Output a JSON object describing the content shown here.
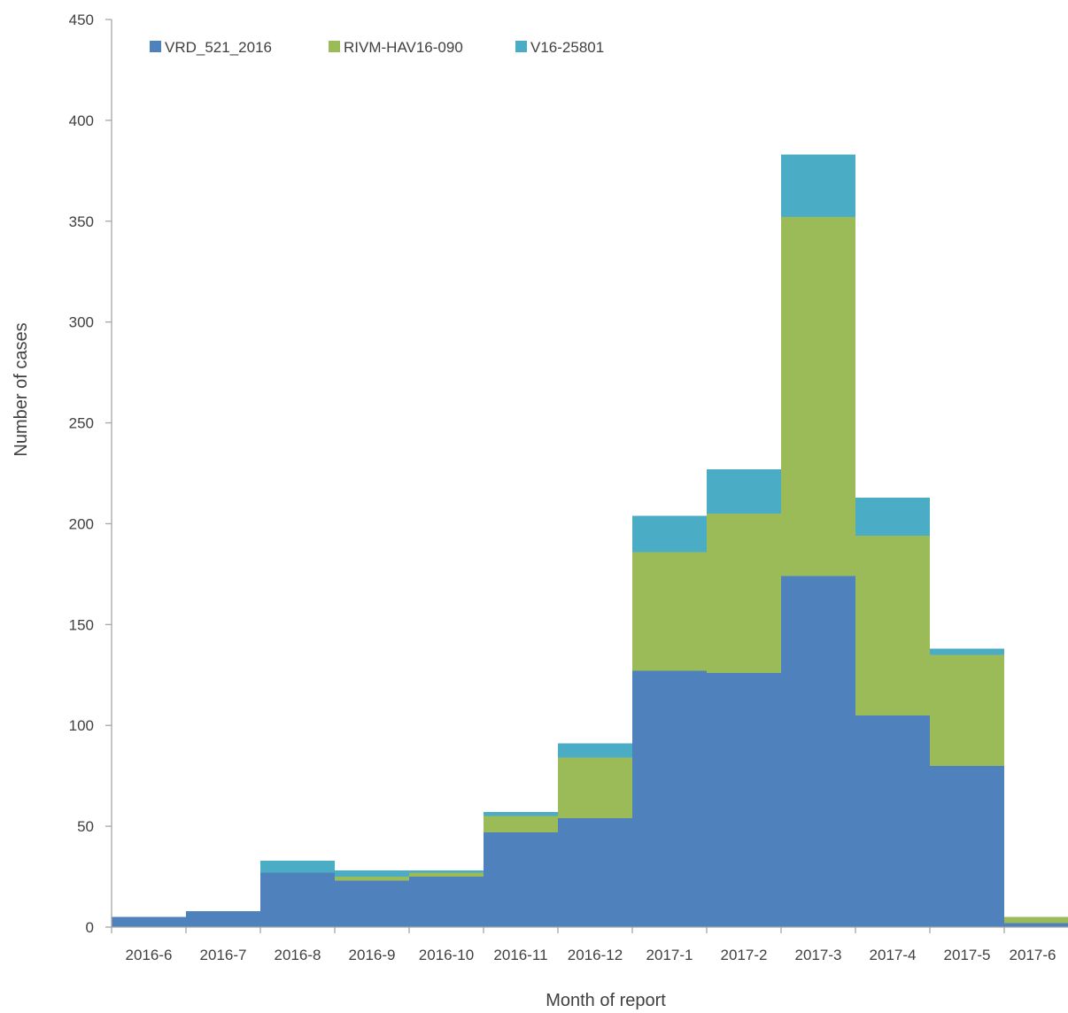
{
  "chart_data": {
    "type": "bar",
    "stacked": true,
    "bar_gap": 0,
    "categories": [
      "2016-6",
      "2016-7",
      "2016-8",
      "2016-9",
      "2016-10",
      "2016-11",
      "2016-12",
      "2017-1",
      "2017-2",
      "2017-3",
      "2017-4",
      "2017-5",
      "2017-6"
    ],
    "series": [
      {
        "name": "VRD_521_2016",
        "color": "#4F81BD",
        "values": [
          5,
          8,
          27,
          23,
          25,
          47,
          54,
          127,
          126,
          174,
          105,
          80,
          2
        ]
      },
      {
        "name": "RIVM-HAV16-090",
        "color": "#9BBB59",
        "values": [
          0,
          0,
          0,
          2,
          2,
          8,
          30,
          59,
          79,
          178,
          89,
          55,
          3
        ]
      },
      {
        "name": "V16-25801",
        "color": "#4BACC6",
        "values": [
          0,
          0,
          6,
          3,
          1,
          2,
          7,
          18,
          22,
          31,
          19,
          3,
          0
        ]
      }
    ],
    "title": "",
    "xlabel": "Month of report",
    "ylabel": "Number of cases",
    "ylim": [
      0,
      450
    ],
    "yticks": [
      0,
      50,
      100,
      150,
      200,
      250,
      300,
      350,
      400,
      450
    ],
    "grid": false,
    "legend_position": "top-left"
  }
}
